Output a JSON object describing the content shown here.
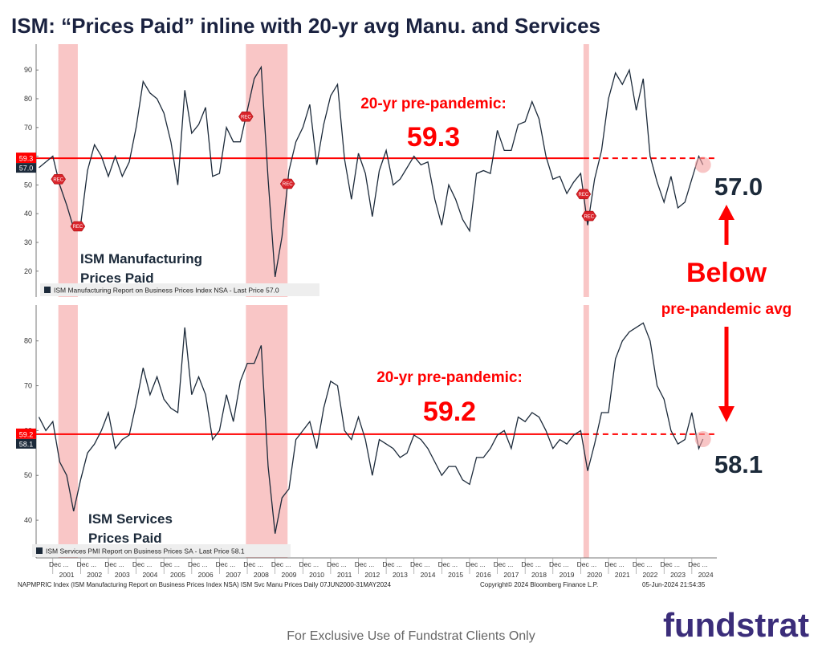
{
  "title": "ISM: “Prices Paid” inline with 20-yr avg Manu. and Services",
  "annotation": {
    "headline": "Below",
    "subline": "pre-pandemic avg"
  },
  "source": {
    "left": "NAPMPRIC Index (ISM Manufacturing Report on Business Prices Index NSA) ISM Svc Manu Prices  Daily 07JUN2000-31MAY2024",
    "copyright": "Copyright© 2024 Bloomberg Finance L.P.",
    "timestamp": "05-Jun-2024 21:54:35"
  },
  "footer": "For Exclusive Use of Fundstrat Clients Only",
  "logo": "fundstrat",
  "shaded_periods": [
    [
      2001.2,
      2001.9
    ],
    [
      2007.95,
      2009.45
    ],
    [
      2020.1,
      2020.3
    ]
  ],
  "chart_data": [
    {
      "type": "line",
      "panel_label": [
        "ISM Manufacturing",
        "Prices Paid"
      ],
      "reference_title": "20-yr pre-pandemic:",
      "reference_value": 59.3,
      "reference_color": "#ff0000",
      "last_price": {
        "value": 57.0,
        "label": "57.0"
      },
      "marker_label": "REC",
      "x": [
        2000.5,
        2000.75,
        2001,
        2001.25,
        2001.5,
        2001.75,
        2002,
        2002.25,
        2002.5,
        2002.75,
        2003,
        2003.25,
        2003.5,
        2003.75,
        2004,
        2004.25,
        2004.5,
        2004.75,
        2005,
        2005.25,
        2005.5,
        2005.75,
        2006,
        2006.25,
        2006.5,
        2006.75,
        2007,
        2007.25,
        2007.5,
        2007.75,
        2008,
        2008.25,
        2008.5,
        2008.75,
        2009,
        2009.25,
        2009.5,
        2009.75,
        2010,
        2010.25,
        2010.5,
        2010.75,
        2011,
        2011.25,
        2011.5,
        2011.75,
        2012,
        2012.25,
        2012.5,
        2012.75,
        2013,
        2013.25,
        2013.5,
        2013.75,
        2014,
        2014.25,
        2014.5,
        2014.75,
        2015,
        2015.25,
        2015.5,
        2015.75,
        2016,
        2016.25,
        2016.5,
        2016.75,
        2017,
        2017.25,
        2017.5,
        2017.75,
        2018,
        2018.25,
        2018.5,
        2018.75,
        2019,
        2019.25,
        2019.5,
        2019.75,
        2020,
        2020.25,
        2020.5,
        2020.75,
        2021,
        2021.25,
        2021.5,
        2021.75,
        2022,
        2022.25,
        2022.5,
        2022.75,
        2023,
        2023.25,
        2023.5,
        2023.75,
        2024,
        2024.25,
        2024.4
      ],
      "series": [
        {
          "name": "ISM Manufacturing Report on Business Prices Index NSA - Last Price 57.0",
          "color": "#1c2a3a",
          "values": [
            56,
            58,
            60,
            50,
            43,
            35,
            36,
            55,
            64,
            60,
            53,
            60,
            53,
            58,
            70,
            86,
            82,
            80,
            75,
            65,
            50,
            83,
            68,
            71,
            77,
            53,
            54,
            70,
            65,
            65,
            76,
            87,
            91,
            52,
            18,
            32,
            55,
            65,
            70,
            78,
            57,
            71,
            81,
            85,
            59,
            45,
            61,
            54,
            39,
            55,
            62,
            50,
            52,
            56,
            60,
            57,
            58,
            45,
            36,
            50,
            45,
            38,
            34,
            54,
            55,
            54,
            69,
            62,
            62,
            71,
            72,
            79,
            73,
            60,
            52,
            53,
            47,
            51,
            54,
            36,
            52,
            62,
            80,
            89,
            85,
            90,
            76,
            87,
            60,
            51,
            44,
            53,
            42,
            44,
            52,
            60,
            57
          ]
        }
      ],
      "xlim": [
        2000.4,
        2024.9
      ],
      "ylim": [
        11,
        99
      ],
      "yticks": [
        20,
        30,
        40,
        50,
        60,
        70,
        80,
        90
      ]
    },
    {
      "type": "line",
      "panel_label": [
        "ISM Services",
        "Prices Paid"
      ],
      "reference_title": "20-yr pre-pandemic:",
      "reference_value": 59.2,
      "reference_color": "#ff0000",
      "last_price": {
        "value": 58.1,
        "label": "58.1"
      },
      "x": [
        2000.5,
        2000.75,
        2001,
        2001.25,
        2001.5,
        2001.75,
        2002,
        2002.25,
        2002.5,
        2002.75,
        2003,
        2003.25,
        2003.5,
        2003.75,
        2004,
        2004.25,
        2004.5,
        2004.75,
        2005,
        2005.25,
        2005.5,
        2005.75,
        2006,
        2006.25,
        2006.5,
        2006.75,
        2007,
        2007.25,
        2007.5,
        2007.75,
        2008,
        2008.25,
        2008.5,
        2008.75,
        2009,
        2009.25,
        2009.5,
        2009.75,
        2010,
        2010.25,
        2010.5,
        2010.75,
        2011,
        2011.25,
        2011.5,
        2011.75,
        2012,
        2012.25,
        2012.5,
        2012.75,
        2013,
        2013.25,
        2013.5,
        2013.75,
        2014,
        2014.25,
        2014.5,
        2014.75,
        2015,
        2015.25,
        2015.5,
        2015.75,
        2016,
        2016.25,
        2016.5,
        2016.75,
        2017,
        2017.25,
        2017.5,
        2017.75,
        2018,
        2018.25,
        2018.5,
        2018.75,
        2019,
        2019.25,
        2019.5,
        2019.75,
        2020,
        2020.25,
        2020.5,
        2020.75,
        2021,
        2021.25,
        2021.5,
        2021.75,
        2022,
        2022.25,
        2022.5,
        2022.75,
        2023,
        2023.25,
        2023.5,
        2023.75,
        2024,
        2024.25,
        2024.4
      ],
      "series": [
        {
          "name": "ISM Services PMI Report on Business Prices SA - Last Price 58.1",
          "color": "#1c2a3a",
          "values": [
            63,
            60,
            62,
            53,
            50,
            42,
            49,
            55,
            57,
            60,
            64,
            56,
            58,
            59,
            66,
            74,
            68,
            72,
            67,
            65,
            64,
            83,
            68,
            72,
            68,
            58,
            60,
            68,
            62,
            71,
            75,
            75,
            79,
            52,
            37,
            45,
            47,
            58,
            60,
            62,
            56,
            65,
            71,
            70,
            60,
            58,
            63,
            58,
            50,
            58,
            57,
            56,
            54,
            55,
            59,
            58,
            56,
            53,
            50,
            52,
            52,
            49,
            48,
            54,
            54,
            56,
            59,
            60,
            56,
            63,
            62,
            64,
            63,
            60,
            56,
            58,
            57,
            59,
            60,
            51,
            57,
            64,
            64,
            76,
            80,
            82,
            83,
            84,
            80,
            70,
            67,
            60,
            57,
            58,
            64,
            56,
            58.1
          ]
        }
      ],
      "xlim": [
        2000.4,
        2024.9
      ],
      "ylim": [
        31.6,
        88
      ],
      "yticks": [
        40,
        50,
        60,
        70,
        80
      ],
      "xticks": [
        2001,
        2002,
        2003,
        2004,
        2005,
        2006,
        2007,
        2008,
        2009,
        2010,
        2011,
        2012,
        2013,
        2014,
        2015,
        2016,
        2017,
        2018,
        2019,
        2020,
        2021,
        2022,
        2023,
        2024
      ],
      "xtick_sublabel": "Dec ..."
    }
  ]
}
